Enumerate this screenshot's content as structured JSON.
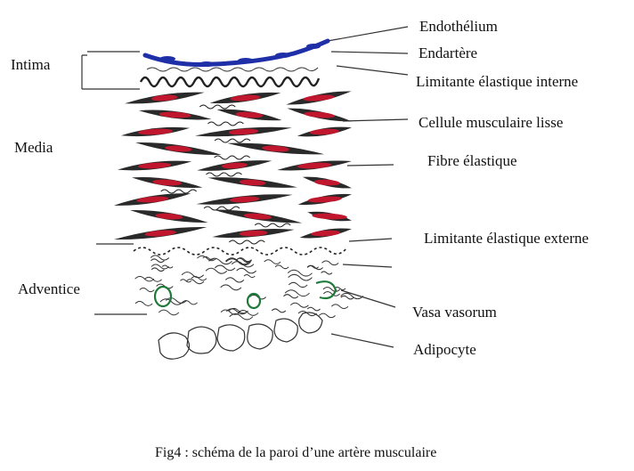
{
  "figure": {
    "caption": "Fig4 : schéma de la paroi d’une artère musculaire",
    "left_labels": {
      "intima": "Intima",
      "media": "Media",
      "adventice": "Adventice"
    },
    "right_labels": {
      "endothelium": "Endothélium",
      "endartere": "Endartère",
      "limitante_interne": "Limitante élastique interne",
      "cellule_musculaire": "Cellule musculaire lisse",
      "fibre_elastique": "Fibre élastique",
      "limitante_externe": "Limitante élastique externe",
      "vasa_vasorum": "Vasa vasorum",
      "adipocyte": "Adipocyte"
    },
    "colors": {
      "endothelium": "#1f2fa8",
      "muscle_cell": "#2a2a2a",
      "nucleus": "#c0172f",
      "vessel": "#1f7a3a",
      "line": "#333333"
    }
  }
}
